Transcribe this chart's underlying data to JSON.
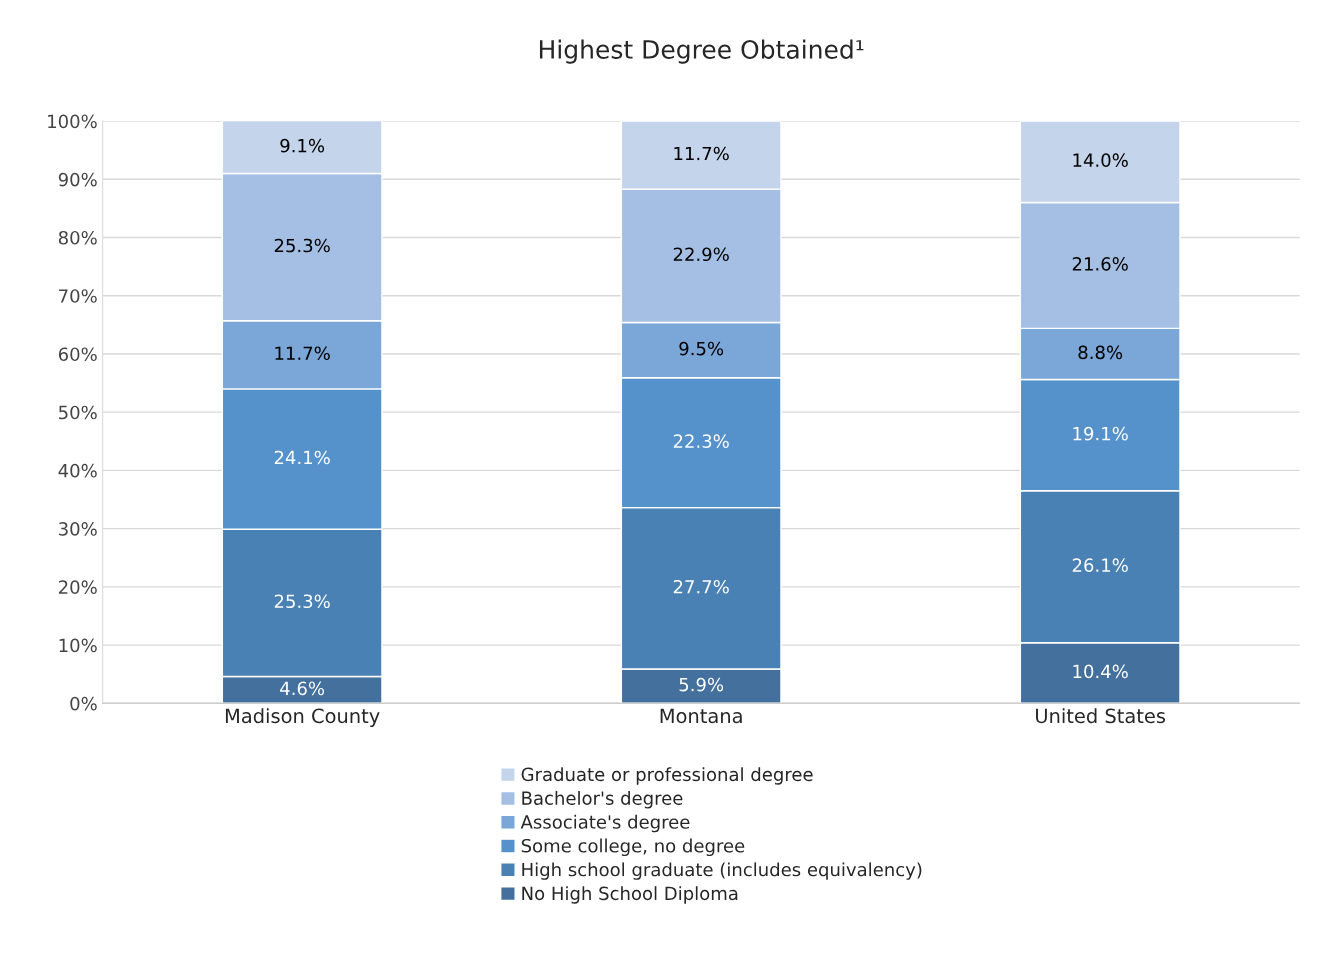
{
  "chart_data": {
    "type": "bar",
    "title": "Highest Degree Obtained¹",
    "stacked": true,
    "categories": [
      "Madison County",
      "Montana",
      "United States"
    ],
    "series": [
      {
        "name": "No High School Diploma",
        "color": "#44709d",
        "values": [
          4.6,
          5.9,
          10.4
        ],
        "value_labels": [
          "4.6%",
          "5.9%",
          "10.4%"
        ]
      },
      {
        "name": "High school graduate (includes equivalency)",
        "color": "#4a81b4",
        "values": [
          25.3,
          27.7,
          26.1
        ],
        "value_labels": [
          "25.3%",
          "27.7%",
          "26.1%"
        ]
      },
      {
        "name": "Some college, no degree",
        "color": "#5592cb",
        "values": [
          24.1,
          22.3,
          19.1
        ],
        "value_labels": [
          "24.1%",
          "22.3%",
          "19.1%"
        ]
      },
      {
        "name": "Associate's degree",
        "color": "#7aa6d8",
        "values": [
          11.7,
          9.5,
          8.8
        ],
        "value_labels": [
          "11.7%",
          "9.5%",
          "8.8%"
        ]
      },
      {
        "name": "Bachelor's degree",
        "color": "#a4bfe3",
        "values": [
          25.3,
          22.9,
          21.6
        ],
        "value_labels": [
          "25.3%",
          "22.9%",
          "21.6%"
        ]
      },
      {
        "name": "Graduate or professional degree",
        "color": "#c4d4ea",
        "values": [
          9.1,
          11.7,
          14.0
        ],
        "value_labels": [
          "9.1%",
          "11.7%",
          "14.0%"
        ]
      }
    ],
    "ylim": [
      0,
      100
    ],
    "yticks": [
      {
        "value": 0,
        "label": "0%"
      },
      {
        "value": 10,
        "label": "10%"
      },
      {
        "value": 20,
        "label": "20%"
      },
      {
        "value": 30,
        "label": "30%"
      },
      {
        "value": 40,
        "label": "40%"
      },
      {
        "value": 50,
        "label": "50%"
      },
      {
        "value": 60,
        "label": "60%"
      },
      {
        "value": 70,
        "label": "70%"
      },
      {
        "value": 80,
        "label": "80%"
      },
      {
        "value": 90,
        "label": "90%"
      },
      {
        "value": 100,
        "label": "100%"
      }
    ],
    "grid": "y",
    "legend": "bottom"
  }
}
